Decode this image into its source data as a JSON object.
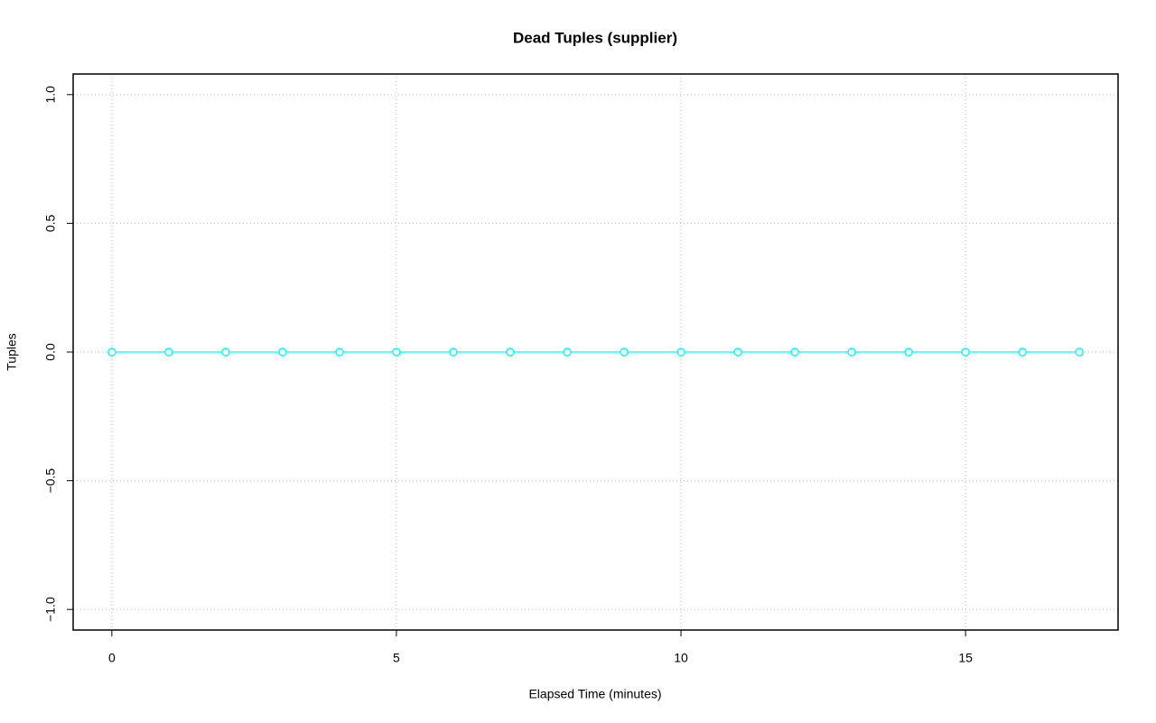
{
  "chart_data": {
    "type": "line",
    "title": "Dead Tuples (supplier)",
    "x_label": "Elapsed Time (minutes)",
    "y_label": "Tuples",
    "x": [
      0,
      1,
      2,
      3,
      4,
      5,
      6,
      7,
      8,
      9,
      10,
      11,
      12,
      13,
      14,
      15,
      16,
      17
    ],
    "series": [
      {
        "color": "#00ffff",
        "values": [
          0,
          0,
          0,
          0,
          0,
          0,
          0,
          0,
          0,
          0,
          0,
          0,
          0,
          0,
          0,
          0,
          0,
          0
        ]
      }
    ],
    "xlim": [
      -0.68,
      17.68
    ],
    "ylim": [
      -1.08,
      1.08
    ],
    "xticks": [
      0,
      5,
      10,
      15
    ],
    "yticks": [
      {
        "value": -1,
        "label": "−1.0"
      },
      {
        "value": -0.5,
        "label": "−0.5"
      },
      {
        "value": 0,
        "label": "0.0"
      },
      0.5,
      {
        "value": 1,
        "label": "1.0"
      }
    ],
    "grid": true
  }
}
